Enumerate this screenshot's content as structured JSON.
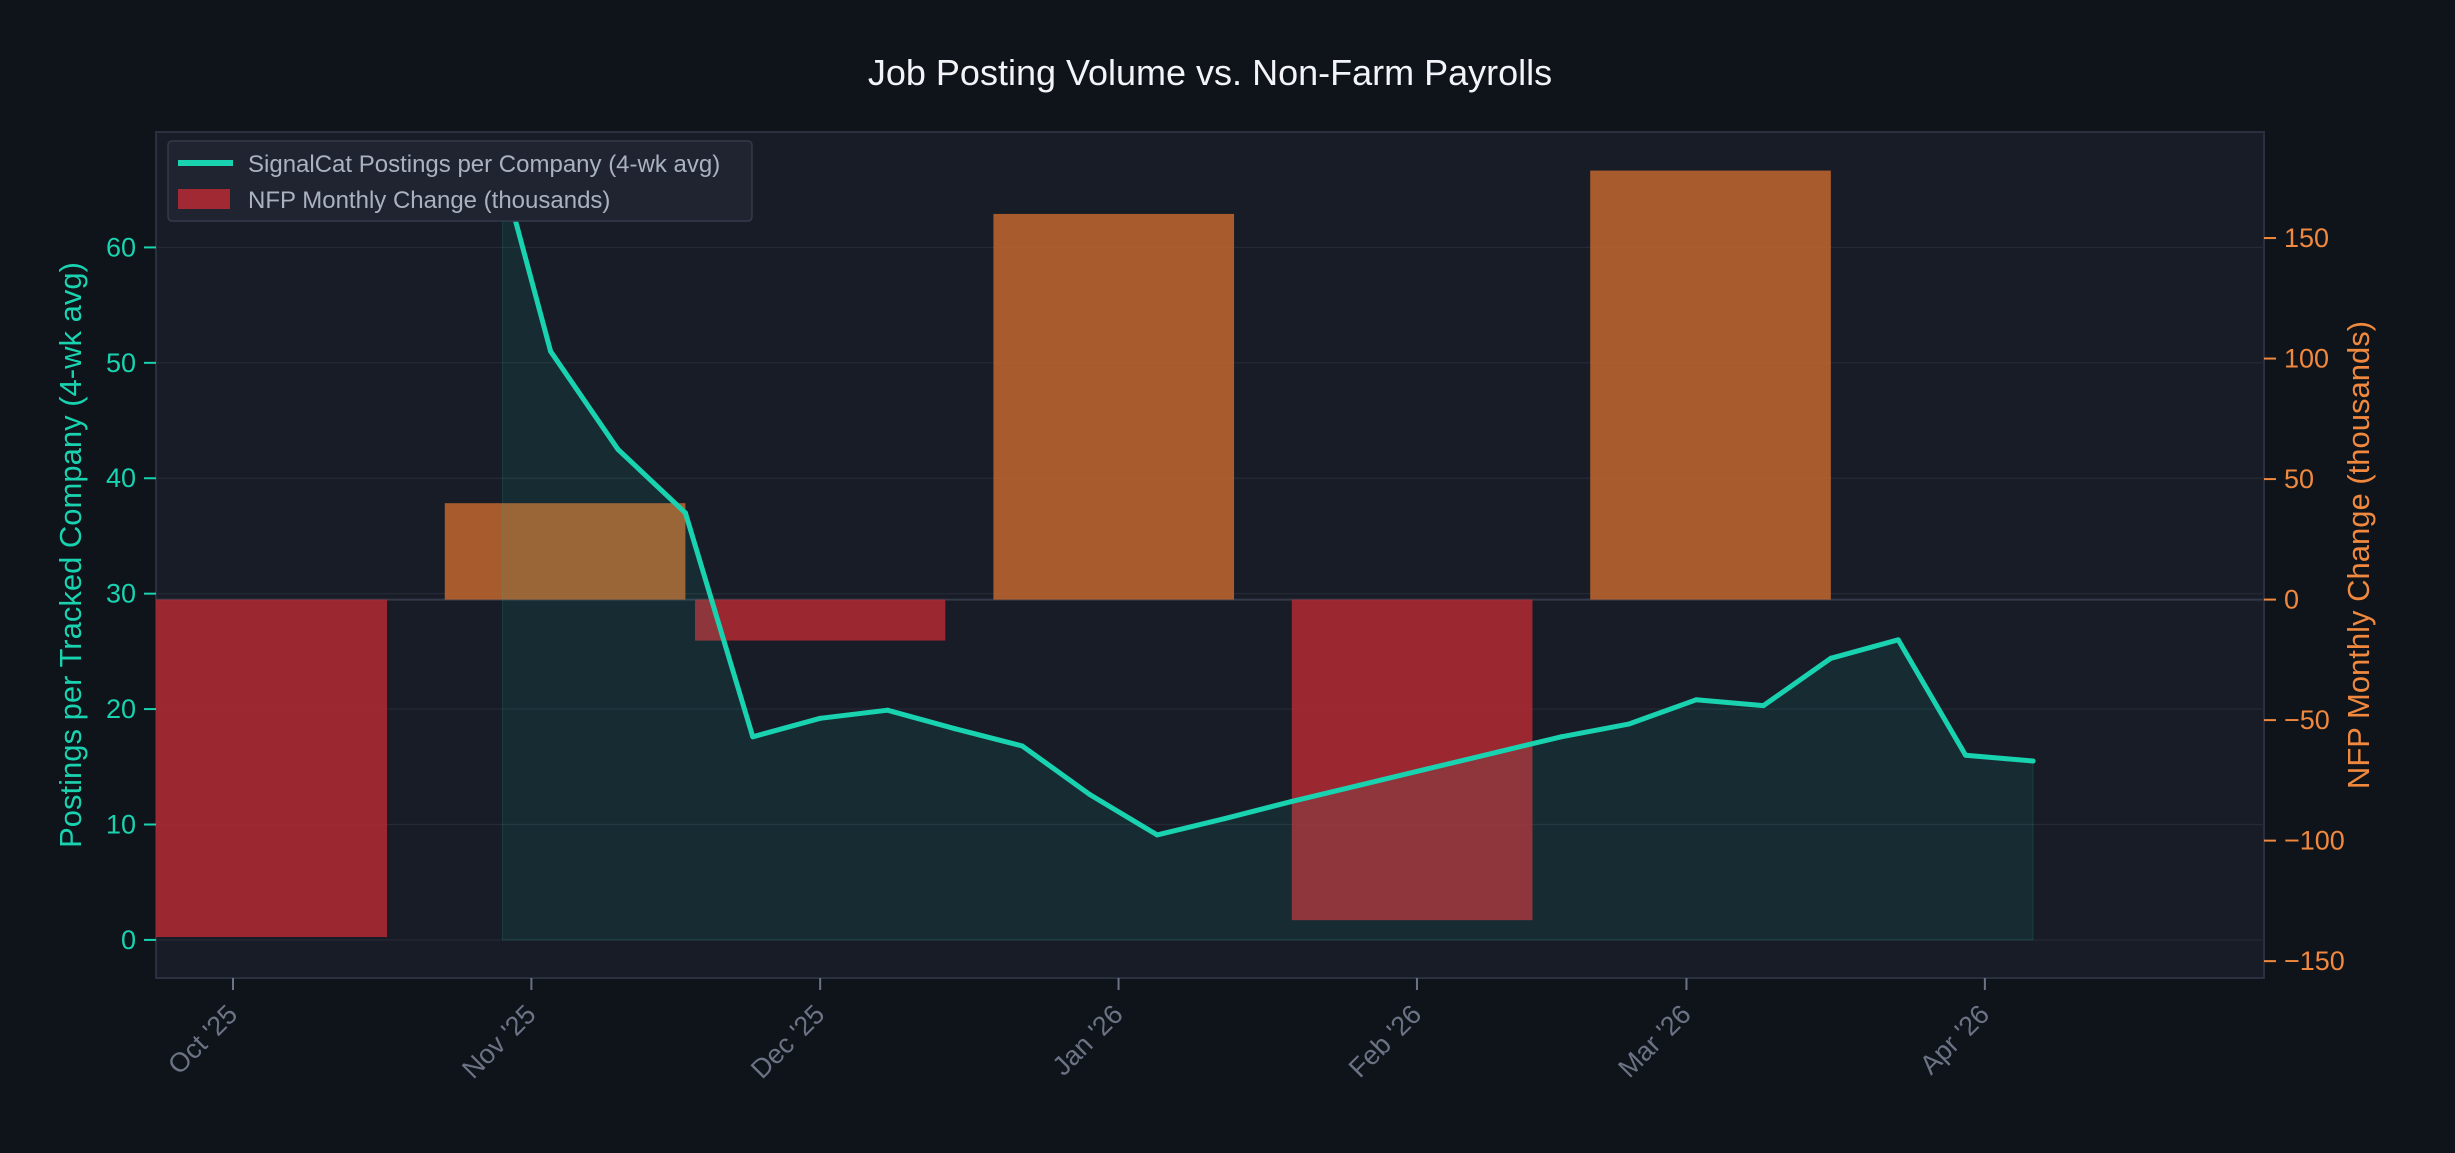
{
  "chart_data": {
    "title": "Job Posting Volume vs. Non-Farm Payrolls",
    "left_axis": {
      "label": "Postings per Tracked Company (4-wk avg)",
      "ticks": [
        "0",
        "10",
        "20",
        "30",
        "40",
        "50",
        "60"
      ],
      "tick_values": [
        0,
        10,
        20,
        30,
        40,
        50,
        60
      ],
      "range": [
        -3.3,
        70
      ],
      "color": "#19d3b0"
    },
    "right_axis": {
      "label": "NFP Monthly Change (thousands)",
      "ticks": [
        "150",
        "100",
        "50",
        "0",
        "−50",
        "−100",
        "−150"
      ],
      "tick_values": [
        150,
        100,
        50,
        0,
        -50,
        -100,
        -150
      ],
      "range": [
        -157,
        194
      ],
      "color": "#f0883e"
    },
    "x_axis": {
      "ticks": [
        "Oct '25",
        "Nov '25",
        "Dec '25",
        "Jan '26",
        "Feb '26",
        "Mar '26",
        "Apr '26"
      ],
      "tick_dates": [
        "2025-10-01",
        "2025-11-01",
        "2025-12-01",
        "2026-01-01",
        "2026-02-01",
        "2026-03-01",
        "2026-04-01"
      ],
      "range": [
        "2025-09-23",
        "2026-04-30"
      ]
    },
    "legend": {
      "placement": "top-left",
      "line_label": "SignalCat Postings per Company (4-wk avg)",
      "bar_label": "NFP Monthly Change (thousands)"
    },
    "series": [
      {
        "name": "SignalCat Postings per Company (4-wk avg)",
        "type": "line",
        "axis": "left",
        "color": "#19d3b0",
        "points": [
          {
            "date": "2025-10-29",
            "value": 66.5
          },
          {
            "date": "2025-11-03",
            "value": 51.0
          },
          {
            "date": "2025-11-10",
            "value": 42.5
          },
          {
            "date": "2025-11-17",
            "value": 37.0
          },
          {
            "date": "2025-11-24",
            "value": 17.6
          },
          {
            "date": "2025-12-01",
            "value": 19.2
          },
          {
            "date": "2025-12-08",
            "value": 19.9
          },
          {
            "date": "2025-12-15",
            "value": 18.3
          },
          {
            "date": "2025-12-22",
            "value": 16.8
          },
          {
            "date": "2025-12-29",
            "value": 12.6
          },
          {
            "date": "2026-01-05",
            "value": 9.1
          },
          {
            "date": "2026-01-12",
            "value": 10.5
          },
          {
            "date": "2026-01-19",
            "value": 12.0
          },
          {
            "date": "2026-01-26",
            "value": 13.4
          },
          {
            "date": "2026-02-02",
            "value": 14.8
          },
          {
            "date": "2026-02-09",
            "value": 16.2
          },
          {
            "date": "2026-02-16",
            "value": 17.6
          },
          {
            "date": "2026-02-23",
            "value": 18.7
          },
          {
            "date": "2026-03-02",
            "value": 20.8
          },
          {
            "date": "2026-03-09",
            "value": 20.3
          },
          {
            "date": "2026-03-16",
            "value": 24.4
          },
          {
            "date": "2026-03-23",
            "value": 26.0
          },
          {
            "date": "2026-03-30",
            "value": 16.0
          },
          {
            "date": "2026-04-06",
            "value": 15.5
          }
        ]
      },
      {
        "name": "NFP Monthly Change (thousands)",
        "type": "bar",
        "axis": "right",
        "positive_color": "#c86a30",
        "negative_color": "#b82a35",
        "bars": [
          {
            "start": "2025-09-23",
            "end": "2025-10-17",
            "value": -140
          },
          {
            "start": "2025-10-23",
            "end": "2025-11-17",
            "value": 40
          },
          {
            "start": "2025-11-18",
            "end": "2025-12-14",
            "value": -17
          },
          {
            "start": "2025-12-19",
            "end": "2026-01-13",
            "value": 160
          },
          {
            "start": "2026-01-19",
            "end": "2026-02-13",
            "value": -133
          },
          {
            "start": "2026-02-19",
            "end": "2026-03-16",
            "value": 178
          }
        ]
      }
    ]
  }
}
